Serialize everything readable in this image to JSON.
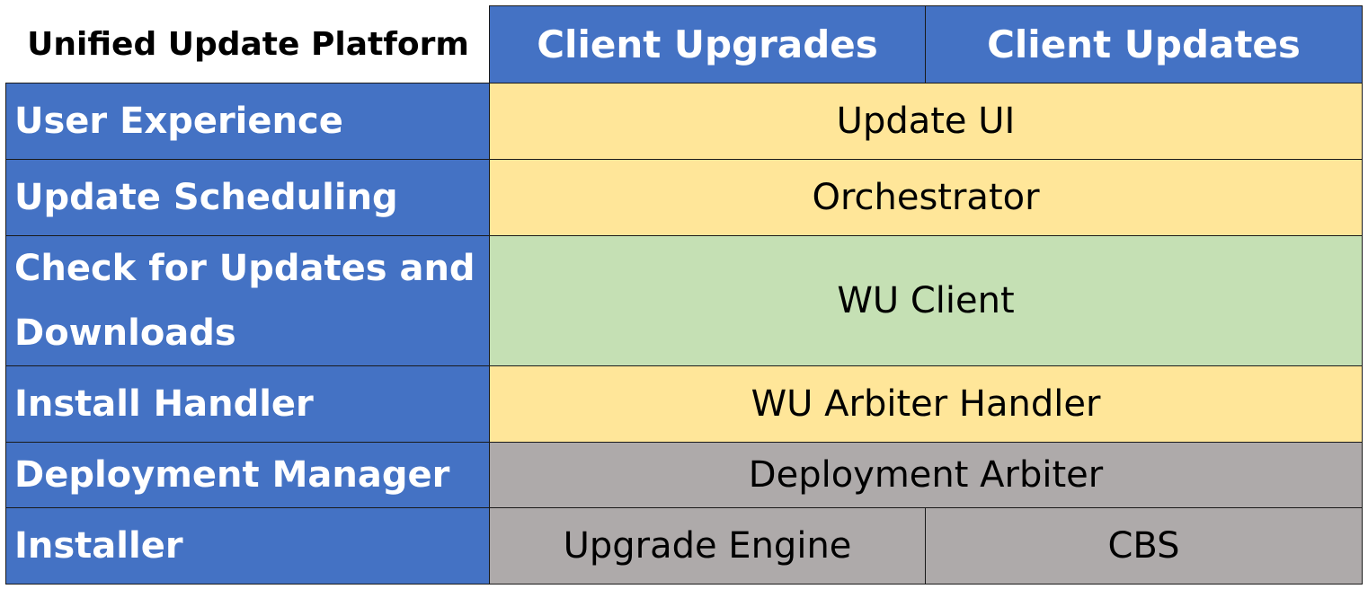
{
  "title": "Unified Update Platform",
  "columns": [
    "Client Upgrades",
    "Client Updates"
  ],
  "rows": [
    {
      "label": "User Experience",
      "component": "Update UI",
      "color": "#FFE699"
    },
    {
      "label": "Update Scheduling",
      "component": "Orchestrator",
      "color": "#FFE699"
    },
    {
      "label": "Check for Updates and Downloads",
      "component": "WU Client",
      "color": "#C5E0B4"
    },
    {
      "label": "Install Handler",
      "component": "WU Arbiter Handler",
      "color": "#FFE699"
    },
    {
      "label": "Deployment Manager",
      "component": "Deployment Arbiter",
      "color": "#AEAAAA"
    },
    {
      "label": "Installer",
      "components": [
        "Upgrade Engine",
        "CBS"
      ],
      "color": "#AEAAAA"
    }
  ],
  "colors": {
    "header": "#4472C4"
  }
}
